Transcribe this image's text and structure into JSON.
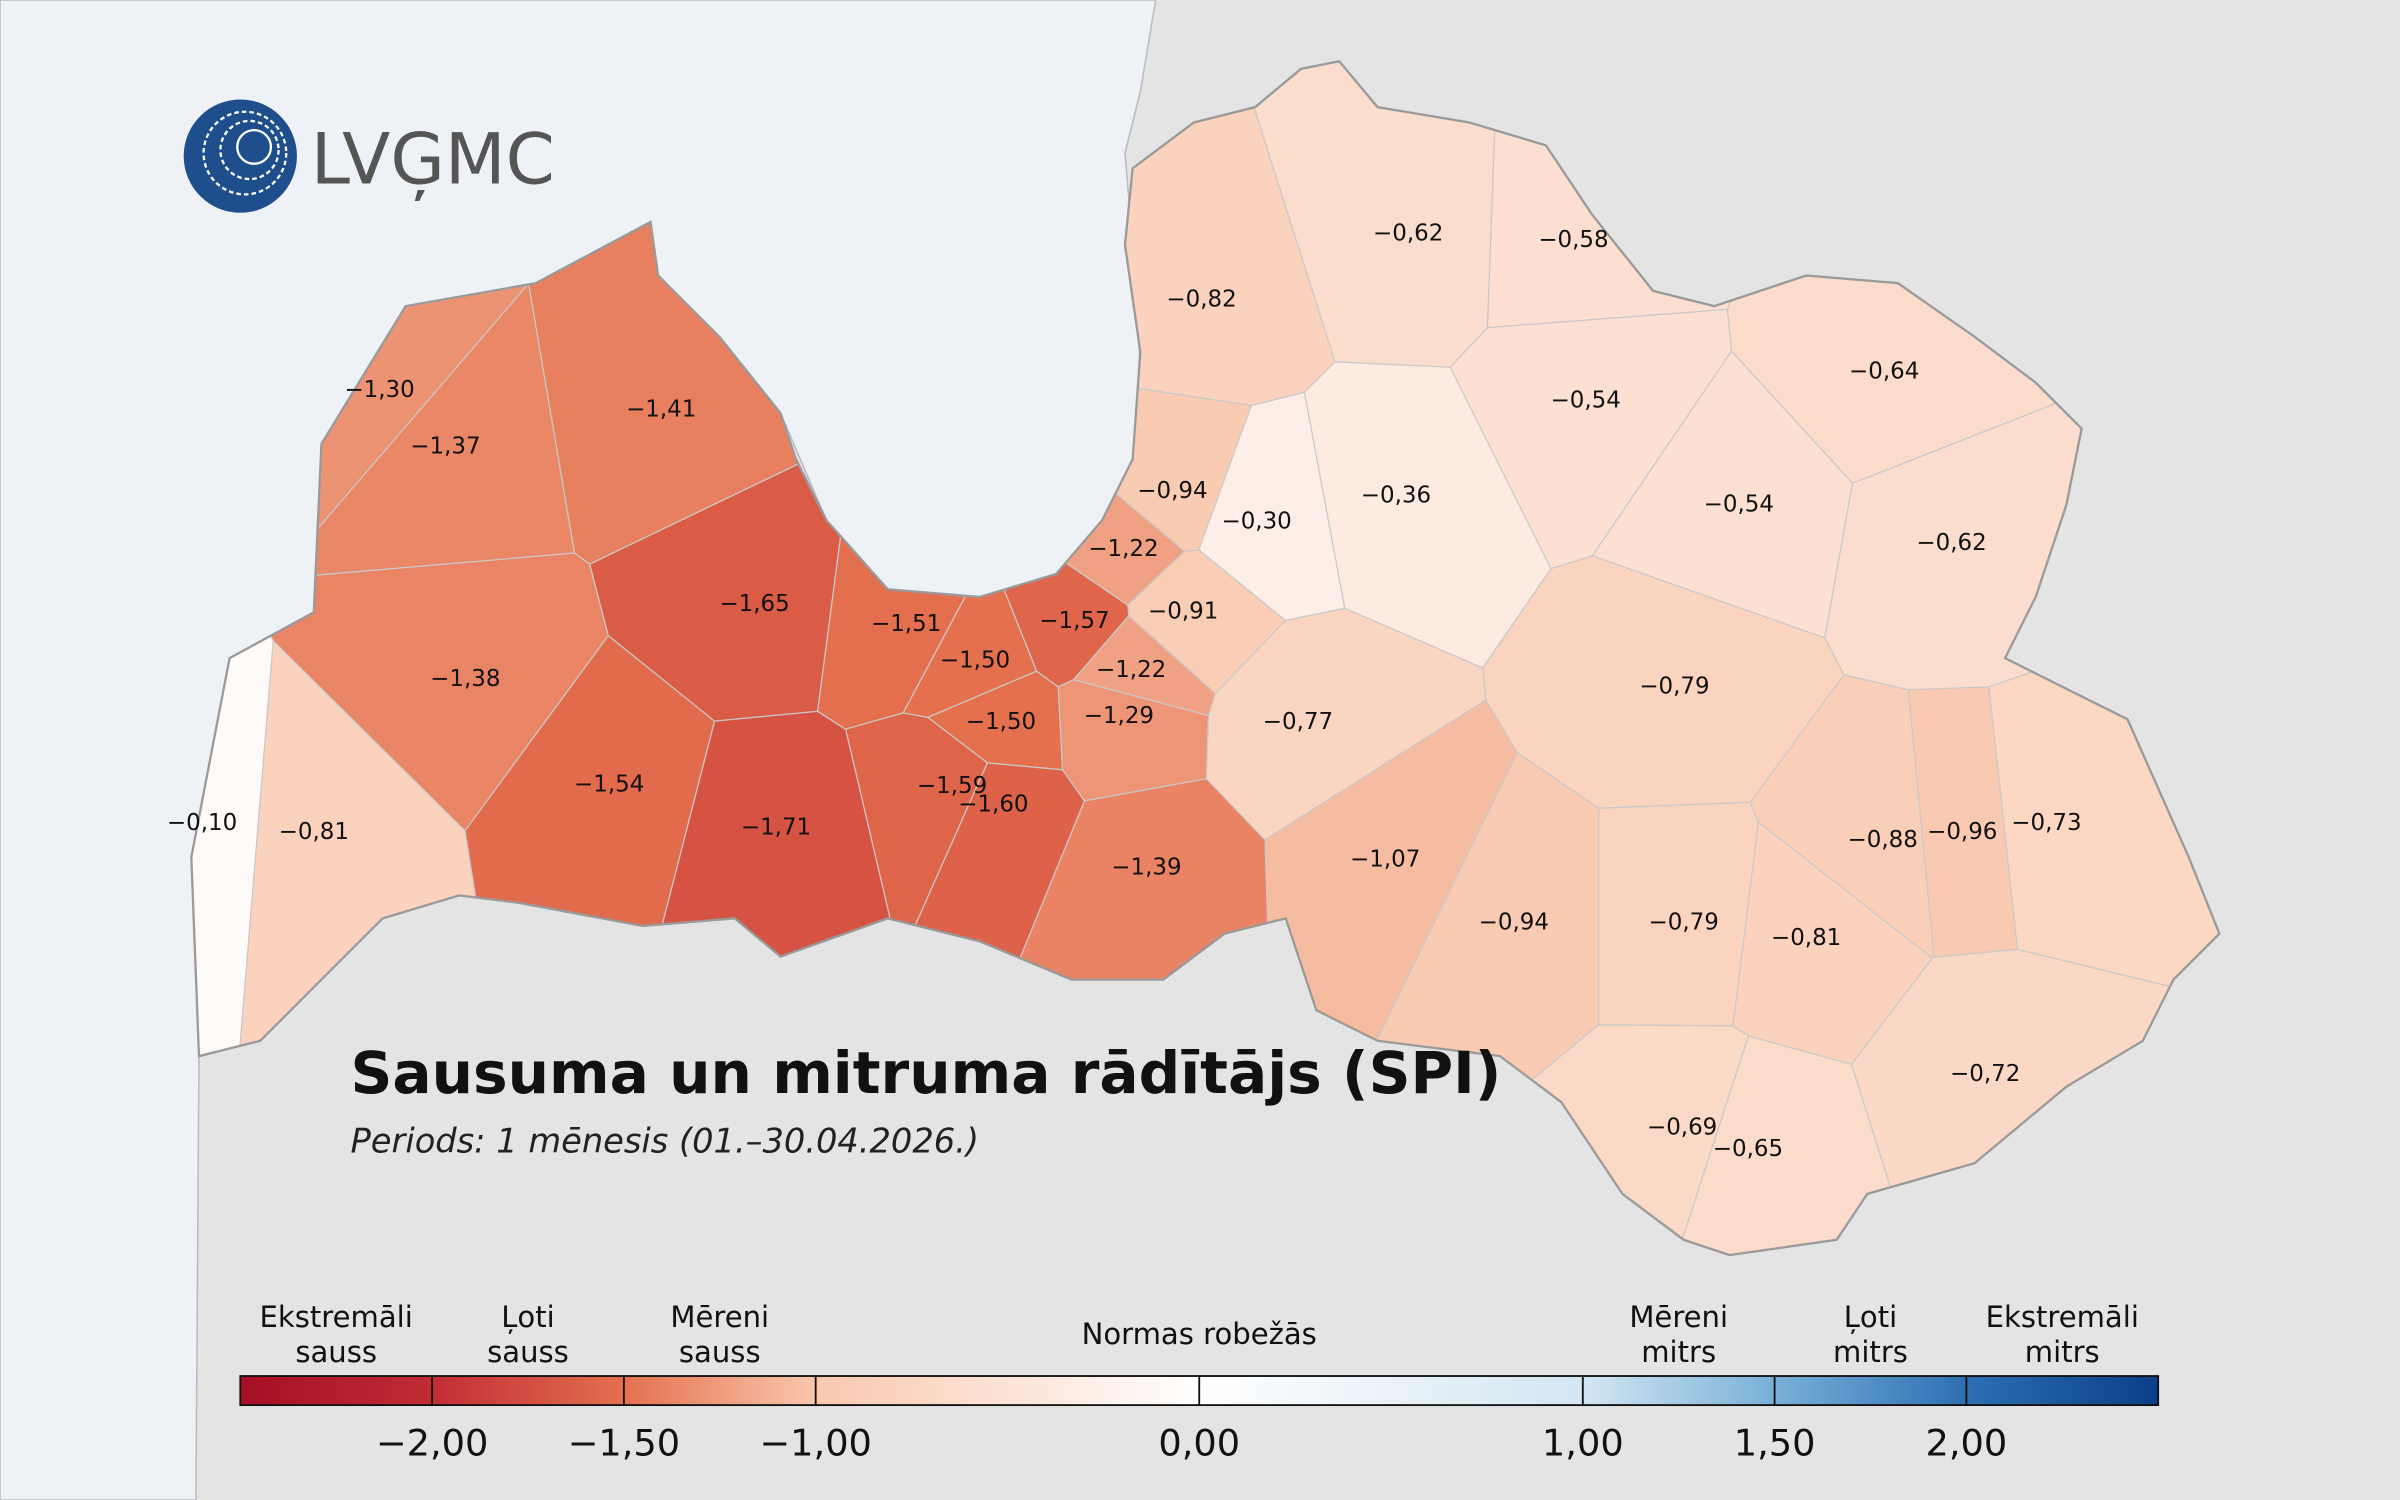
{
  "header": {
    "logo": "LVĢMC",
    "title": "Sausuma un mitruma rādītājs (SPI)",
    "subtitle": "Periods: 1 mēnesis (01.–30.04.2026.)"
  },
  "regions": [
    {
      "value": -1.3,
      "label": "−1,30"
    },
    {
      "value": -1.37,
      "label": "−1,37"
    },
    {
      "value": -1.41,
      "label": "−1,41"
    },
    {
      "value": -1.38,
      "label": "−1,38"
    },
    {
      "value": -1.65,
      "label": "−1,65"
    },
    {
      "value": -1.54,
      "label": "−1,54"
    },
    {
      "value": -1.71,
      "label": "−1,71"
    },
    {
      "value": -0.1,
      "label": "−0,10"
    },
    {
      "value": -0.81,
      "label": "−0,81"
    },
    {
      "value": -1.51,
      "label": "−1,51"
    },
    {
      "value": -1.5,
      "label": "−1,50"
    },
    {
      "value": -1.5,
      "label": "−1,50"
    },
    {
      "value": -1.59,
      "label": "−1,59"
    },
    {
      "value": -1.6,
      "label": "−1,60"
    },
    {
      "value": -1.39,
      "label": "−1,39"
    },
    {
      "value": -1.57,
      "label": "−1,57"
    },
    {
      "value": -1.22,
      "label": "−1,22"
    },
    {
      "value": -0.94,
      "label": "−0,94"
    },
    {
      "value": -0.3,
      "label": "−0,30"
    },
    {
      "value": -0.91,
      "label": "−0,91"
    },
    {
      "value": -1.22,
      "label": "−1,22"
    },
    {
      "value": -1.29,
      "label": "−1,29"
    },
    {
      "value": -0.77,
      "label": "−0,77"
    },
    {
      "value": -0.82,
      "label": "−0,82"
    },
    {
      "value": -0.62,
      "label": "−0,62"
    },
    {
      "value": -0.58,
      "label": "−0,58"
    },
    {
      "value": -0.54,
      "label": "−0,54"
    },
    {
      "value": -0.64,
      "label": "−0,64"
    },
    {
      "value": -0.36,
      "label": "−0,36"
    },
    {
      "value": -0.54,
      "label": "−0,54"
    },
    {
      "value": -0.62,
      "label": "−0,62"
    },
    {
      "value": -0.79,
      "label": "−0,79"
    },
    {
      "value": -1.07,
      "label": "−1,07"
    },
    {
      "value": -0.94,
      "label": "−0,94"
    },
    {
      "value": -0.79,
      "label": "−0,79"
    },
    {
      "value": -0.81,
      "label": "−0,81"
    },
    {
      "value": -0.88,
      "label": "−0,88"
    },
    {
      "value": -0.96,
      "label": "−0,96"
    },
    {
      "value": -0.73,
      "label": "−0,73"
    },
    {
      "value": -0.72,
      "label": "−0,72"
    },
    {
      "value": -0.69,
      "label": "−0,69"
    },
    {
      "value": -0.65,
      "label": "−0,65"
    }
  ],
  "legend": {
    "xlim": [
      -2.5,
      2.5
    ],
    "ticks": [
      {
        "value": -2,
        "label": "−2,00"
      },
      {
        "value": -1.5,
        "label": "−1,50"
      },
      {
        "value": -1,
        "label": "−1,00"
      },
      {
        "value": 0,
        "label": "0,00"
      },
      {
        "value": 1,
        "label": "1,00"
      },
      {
        "value": 1.5,
        "label": "1,50"
      },
      {
        "value": 2,
        "label": "2,00"
      }
    ],
    "categories": [
      [
        "Ekstremāli",
        "sauss"
      ],
      [
        "Ļoti",
        "sauss"
      ],
      [
        "Mēreni",
        "sauss"
      ],
      [
        "Normas robežās"
      ],
      [
        "Mēreni",
        "mitrs"
      ],
      [
        "Ļoti",
        "mitrs"
      ],
      [
        "Ekstremāli",
        "mitrs"
      ]
    ],
    "color_stops": [
      {
        "value": -2.5,
        "color": "#a50f26"
      },
      {
        "value": -2,
        "color": "#c22c35"
      },
      {
        "value": -1.5,
        "color": "#e4704e"
      },
      {
        "value": -1,
        "color": "#f9c8ae"
      },
      {
        "value": 0,
        "color": "#ffffff"
      },
      {
        "value": 1,
        "color": "#d3e6f2"
      },
      {
        "value": 1.5,
        "color": "#78b0d8"
      },
      {
        "value": 2,
        "color": "#2e6fb3"
      },
      {
        "value": 2.5,
        "color": "#0b3f87"
      }
    ]
  }
}
